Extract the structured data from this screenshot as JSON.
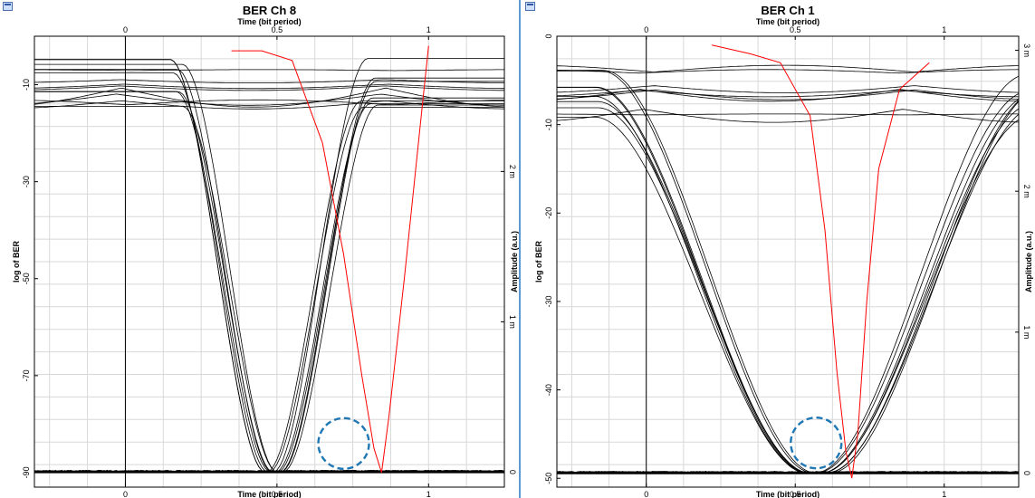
{
  "chart_data": [
    {
      "type": "line",
      "title": "BER Ch 8",
      "x_top_label": "Time (bit period)",
      "x_bottom_label": "Time (bit period)",
      "y_left_label": "log of BER",
      "y_right_label": "Amplitude (a.u.)",
      "x_range": [
        -0.3,
        1.25
      ],
      "x_ticks": [
        "0",
        "0.5",
        "1"
      ],
      "y_left_range": [
        -93,
        0
      ],
      "y_left_ticks": [
        "-10",
        "-30",
        "-50",
        "-70",
        "-90"
      ],
      "y_right_range": [
        -0.1,
        2.9
      ],
      "y_right_ticks": [
        "0",
        "1 m",
        "2 m"
      ],
      "ber_curve": {
        "color": "#ff0000",
        "x": [
          0.35,
          0.45,
          0.55,
          0.65,
          0.72,
          0.78,
          0.82,
          0.845,
          0.87,
          0.92,
          0.97,
          1.0
        ],
        "y": [
          -3,
          -3,
          -5,
          -22,
          -45,
          -70,
          -85,
          -90,
          -78,
          -50,
          -20,
          -2
        ]
      },
      "eye_diagram": {
        "amplitude_high": 2.6,
        "amplitude_low": 0.0,
        "crossing_x": [
          0.32,
          0.65
        ],
        "crossing_amplitude": 0.7,
        "traces": 16
      },
      "annotation": {
        "shape": "dashed-circle",
        "color": "#1f77b4",
        "x": 0.72,
        "y": -84
      }
    },
    {
      "type": "line",
      "title": "BER Ch 1",
      "x_top_label": "Time (bit period)",
      "x_bottom_label": "Time (bit period)",
      "y_left_label": "log of BER",
      "y_right_label": "Amplitude (a.u.)",
      "x_range": [
        -0.3,
        1.25
      ],
      "x_ticks": [
        "0",
        "0.5",
        "1"
      ],
      "y_left_range": [
        -51,
        0
      ],
      "y_left_ticks": [
        "0",
        "-10",
        "-20",
        "-30",
        "-40",
        "-50"
      ],
      "y_right_range": [
        -0.1,
        3.1
      ],
      "y_right_ticks": [
        "0",
        "1 m",
        "2 m",
        "3 m"
      ],
      "ber_curve": {
        "color": "#ff0000",
        "x": [
          0.22,
          0.35,
          0.45,
          0.55,
          0.6,
          0.64,
          0.67,
          0.69,
          0.71,
          0.74,
          0.78,
          0.85,
          0.95
        ],
        "y": [
          -1,
          -2,
          -3,
          -9,
          -22,
          -38,
          -47,
          -50,
          -45,
          -30,
          -15,
          -6,
          -3
        ]
      },
      "eye_diagram": {
        "amplitude_high": 2.7,
        "amplitude_low": 0.0,
        "crossing_x": [
          0.2,
          0.95
        ],
        "crossing_amplitude": 1.05,
        "traces": 16
      },
      "annotation": {
        "shape": "dashed-circle",
        "color": "#1f77b4",
        "x": 0.57,
        "y": -46
      }
    }
  ]
}
